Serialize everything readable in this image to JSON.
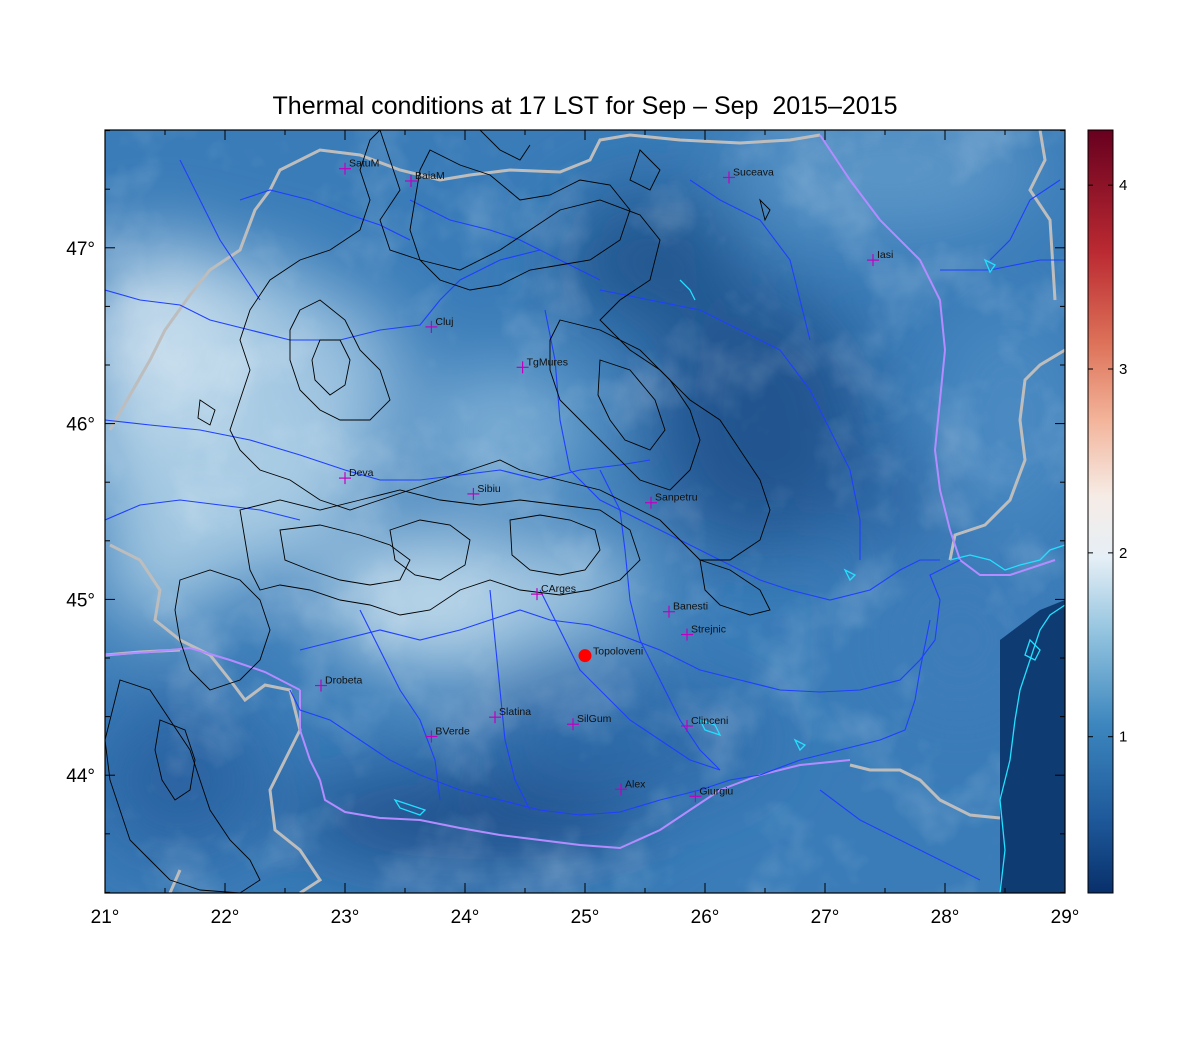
{
  "title": "Thermal conditions at 17 LST for Sep – Sep  2015–2015",
  "map": {
    "lon_range": [
      21,
      29
    ],
    "lat_range": [
      43.33,
      47.67
    ],
    "lon_ticks": [
      21,
      22,
      23,
      24,
      25,
      26,
      27,
      28,
      29
    ],
    "lat_ticks": [
      44,
      45,
      46,
      47
    ],
    "lon_tick_labels": [
      "21°",
      "22°",
      "23°",
      "24°",
      "25°",
      "26°",
      "27°",
      "28°",
      "29°"
    ],
    "lat_tick_labels": [
      "44°",
      "45°",
      "46°",
      "47°"
    ],
    "colors": {
      "low": "#08306b",
      "mid": "#f7f7f7",
      "high": "#67001f",
      "country_border": "#bdbdbd",
      "rivers": "#1f3fff",
      "contours": "#000000",
      "coast": "#22e0ff",
      "county_border": "#b48cff",
      "city_marker": "#c000c0",
      "highlight_marker": "#ff0000"
    },
    "cities": [
      {
        "name": "SatuM",
        "lon": 23.0,
        "lat": 47.45
      },
      {
        "name": "BaiaM",
        "lon": 23.55,
        "lat": 47.38
      },
      {
        "name": "Suceava",
        "lon": 26.2,
        "lat": 47.4
      },
      {
        "name": "Iasi",
        "lon": 27.4,
        "lat": 46.93
      },
      {
        "name": "Cluj",
        "lon": 23.72,
        "lat": 46.55
      },
      {
        "name": "TgMures",
        "lon": 24.48,
        "lat": 46.32
      },
      {
        "name": "Deva",
        "lon": 23.0,
        "lat": 45.69
      },
      {
        "name": "Sibiu",
        "lon": 24.07,
        "lat": 45.6
      },
      {
        "name": "Sanpetru",
        "lon": 25.55,
        "lat": 45.55
      },
      {
        "name": "CArges",
        "lon": 24.6,
        "lat": 45.03
      },
      {
        "name": "Banesti",
        "lon": 25.7,
        "lat": 44.93
      },
      {
        "name": "Strejnic",
        "lon": 25.85,
        "lat": 44.8
      },
      {
        "name": "Drobeta",
        "lon": 22.8,
        "lat": 44.51
      },
      {
        "name": "Slatina",
        "lon": 24.25,
        "lat": 44.33
      },
      {
        "name": "SilGum",
        "lon": 24.9,
        "lat": 44.29
      },
      {
        "name": "Clinceni",
        "lon": 25.85,
        "lat": 44.28
      },
      {
        "name": "BVerde",
        "lon": 23.72,
        "lat": 44.22
      },
      {
        "name": "Alex",
        "lon": 25.3,
        "lat": 43.92
      },
      {
        "name": "Giurgiu",
        "lon": 25.92,
        "lat": 43.88
      }
    ],
    "highlight": {
      "name": "Topoloveni",
      "lon": 25.0,
      "lat": 44.68
    }
  },
  "colorbar": {
    "min": 0.15,
    "max": 4.3,
    "ticks": [
      1,
      2,
      3,
      4
    ],
    "tick_labels": [
      "1",
      "2",
      "3",
      "4"
    ]
  }
}
